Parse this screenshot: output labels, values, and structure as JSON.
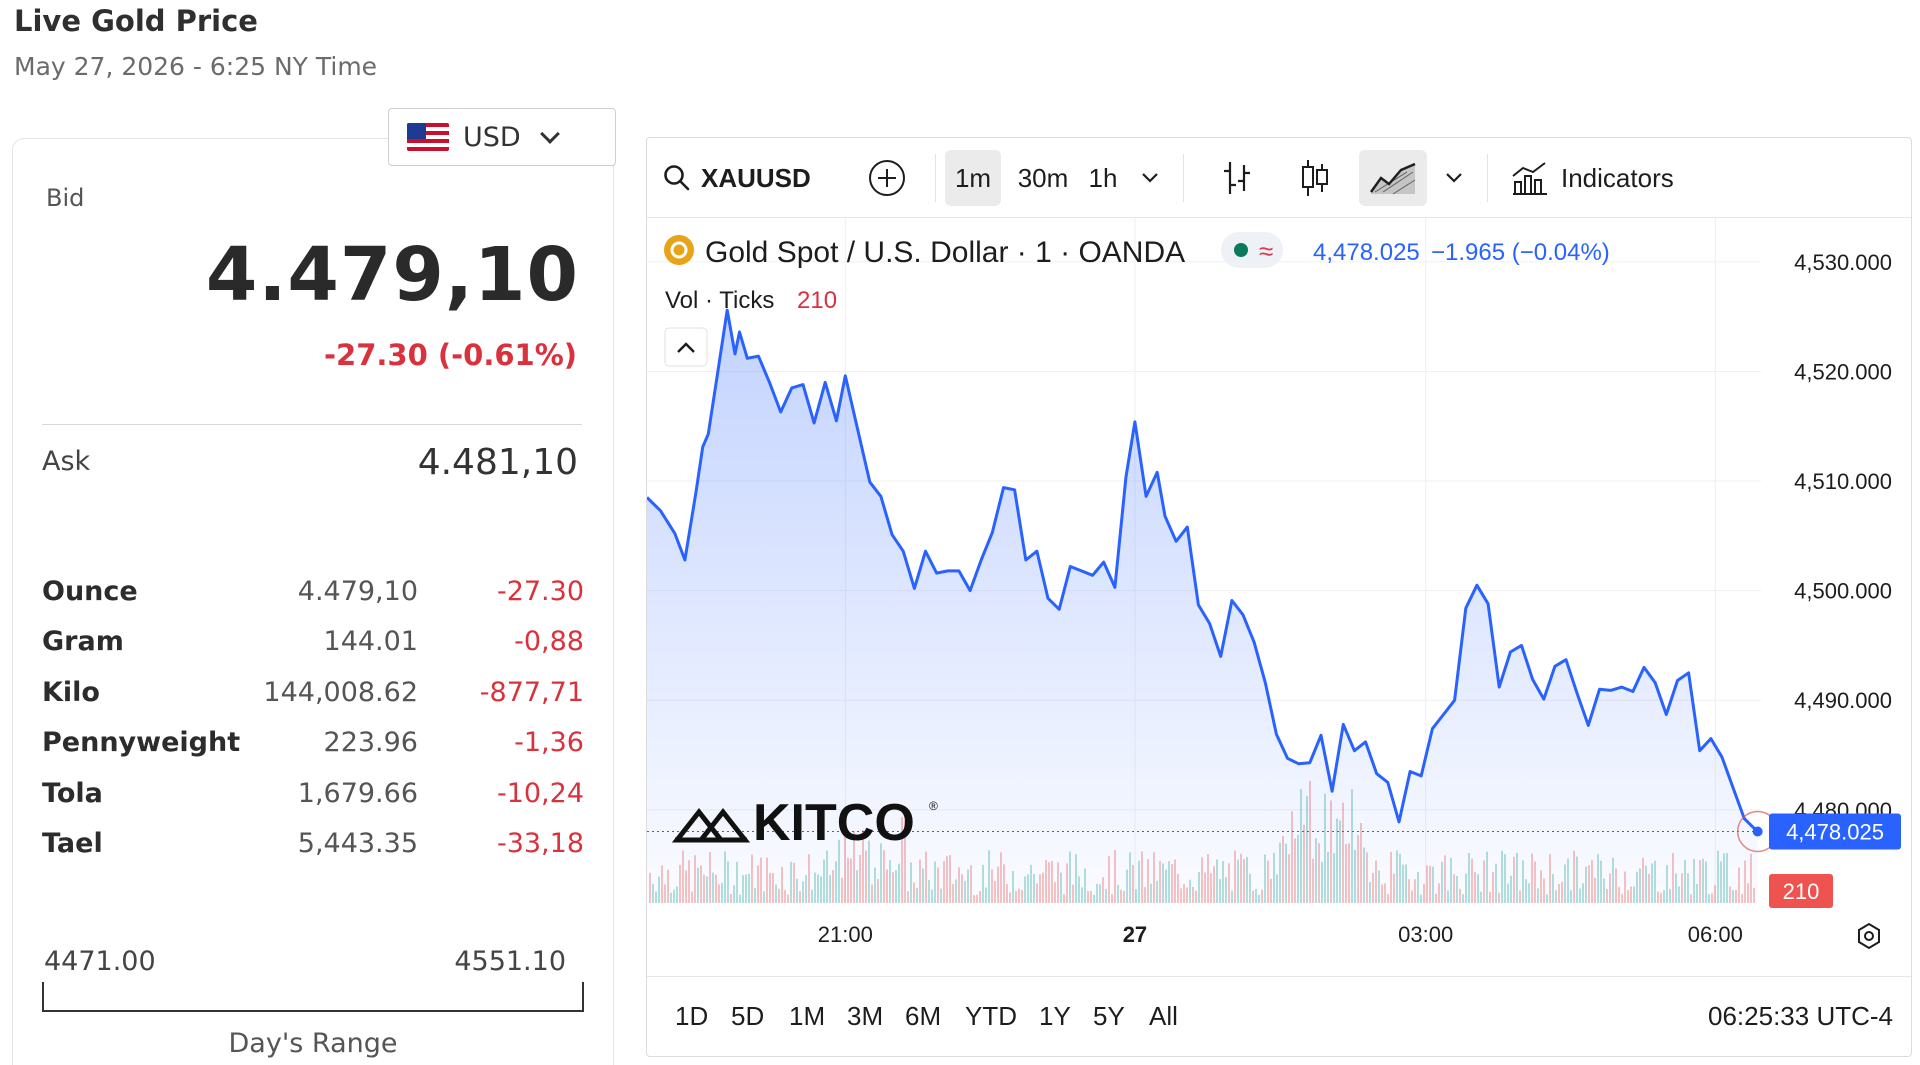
{
  "page": {
    "title": "Live Gold Price",
    "subtitle": "May 27, 2026 - 6:25 NY Time"
  },
  "currency": {
    "selected": "USD",
    "flag_icon": "us-flag-icon"
  },
  "quote": {
    "bid_label": "Bid",
    "bid": "4.479,10",
    "change": "-27.30 (-0.61%)",
    "ask_label": "Ask",
    "ask": "4.481,10"
  },
  "units": [
    {
      "name": "Ounce",
      "value": "4.479,10",
      "change": "-27.30"
    },
    {
      "name": "Gram",
      "value": "144.01",
      "change": "-0,88"
    },
    {
      "name": "Kilo",
      "value": "144,008.62",
      "change": "-877,71"
    },
    {
      "name": "Pennyweight",
      "value": "223.96",
      "change": "-1,36"
    },
    {
      "name": "Tola",
      "value": "1,679.66",
      "change": "-10,24"
    },
    {
      "name": "Tael",
      "value": "5,443.35",
      "change": "-33,18"
    }
  ],
  "day_range": {
    "low": "4471.00",
    "high": "4551.10",
    "label": "Day's Range"
  },
  "toolbar": {
    "symbol": "XAUUSD",
    "intervals": [
      "1m",
      "30m",
      "1h"
    ],
    "active_interval": "1m",
    "indicators_label": "Indicators"
  },
  "legend": {
    "instrument": "Gold Spot / U.S. Dollar · 1 · OANDA",
    "last": "4,478.025",
    "change": "−1.965 (−0.04%)",
    "vol_label": "Vol · Ticks",
    "vol_value": "210"
  },
  "watermark": "KITCO",
  "bottom": {
    "ranges": [
      "1D",
      "5D",
      "1M",
      "3M",
      "6M",
      "YTD",
      "1Y",
      "5Y",
      "All"
    ],
    "clock": "06:25:33 UTC-4"
  },
  "colors": {
    "line": "#2962ff",
    "down": "#d9323d",
    "up_vol": "#26a69a",
    "down_vol": "#ef5350"
  },
  "chart_data": {
    "type": "area",
    "title": "Gold Spot / U.S. Dollar · 1 · OANDA",
    "xlabel": "",
    "ylabel": "",
    "x_ticks": [
      "21:00",
      "27",
      "03:00",
      "06:00"
    ],
    "x_tick_positions": [
      0.178,
      0.438,
      0.699,
      0.959
    ],
    "y_ticks": [
      "4,530.000",
      "4,520.000",
      "4,510.000",
      "4,500.000",
      "4,490.000",
      "4,480.000"
    ],
    "y_tick_values": [
      4530,
      4520,
      4510,
      4500,
      4490,
      4480
    ],
    "ylim": [
      4471.5,
      4534
    ],
    "last_price_label": "4,478.025",
    "last_volume_label": "210",
    "series": [
      {
        "name": "XAUUSD",
        "x": [
          0.0,
          0.012,
          0.025,
          0.034,
          0.044,
          0.05,
          0.055,
          0.063,
          0.072,
          0.079,
          0.083,
          0.09,
          0.1,
          0.11,
          0.12,
          0.13,
          0.14,
          0.15,
          0.16,
          0.17,
          0.178,
          0.19,
          0.2,
          0.21,
          0.22,
          0.23,
          0.24,
          0.25,
          0.26,
          0.27,
          0.28,
          0.29,
          0.3,
          0.31,
          0.32,
          0.33,
          0.34,
          0.35,
          0.36,
          0.37,
          0.38,
          0.39,
          0.4,
          0.41,
          0.42,
          0.43,
          0.438,
          0.448,
          0.458,
          0.465,
          0.475,
          0.485,
          0.495,
          0.505,
          0.515,
          0.525,
          0.535,
          0.545,
          0.555,
          0.565,
          0.575,
          0.585,
          0.595,
          0.605,
          0.615,
          0.625,
          0.635,
          0.645,
          0.655,
          0.665,
          0.675,
          0.685,
          0.695,
          0.705,
          0.715,
          0.725,
          0.735,
          0.745,
          0.755,
          0.765,
          0.775,
          0.785,
          0.795,
          0.805,
          0.815,
          0.825,
          0.835,
          0.845,
          0.855,
          0.865,
          0.875,
          0.885,
          0.895,
          0.905,
          0.915,
          0.925,
          0.935,
          0.945,
          0.955,
          0.965,
          0.975,
          0.985,
          0.992,
          0.997
        ],
        "values": [
          4508.5,
          4507.3,
          4505.2,
          4502.8,
          4509,
          4513.1,
          4514.3,
          4519.6,
          4525.6,
          4521.6,
          4523.6,
          4521.2,
          4521.4,
          4519,
          4516.3,
          4518.5,
          4518.8,
          4515.3,
          4519,
          4515.5,
          4519.6,
          4514.3,
          4509.9,
          4508.6,
          4505.1,
          4503.6,
          4500.2,
          4503.6,
          4501.6,
          4501.8,
          4501.8,
          4500,
          4502.8,
          4505.3,
          4509.4,
          4509.2,
          4502.8,
          4503.6,
          4499.3,
          4498.3,
          4502.2,
          4501.8,
          4501.4,
          4502.6,
          4500.3,
          4510.4,
          4515.4,
          4508.6,
          4510.8,
          4506.8,
          4504.5,
          4505.8,
          4498.7,
          4497,
          4494,
          4499.1,
          4497.8,
          4495.3,
          4491.6,
          4486.9,
          4484.7,
          4484.2,
          4484.3,
          4486.8,
          4481.7,
          4487.8,
          4485.4,
          4486.2,
          4483.3,
          4482.5,
          4478.9,
          4483.5,
          4483.1,
          4487.4,
          4488.7,
          4490,
          4498.4,
          4500.5,
          4498.8,
          4491.2,
          4494.4,
          4495,
          4491.9,
          4490.1,
          4493.1,
          4493.7,
          4490.6,
          4487.7,
          4491,
          4490.9,
          4491.2,
          4490.8,
          4493,
          4491.6,
          4488.7,
          4491.8,
          4492.5,
          4485.4,
          4486.5,
          4484.8,
          4482,
          4479.2,
          4478.5,
          4478.025
        ]
      }
    ]
  }
}
